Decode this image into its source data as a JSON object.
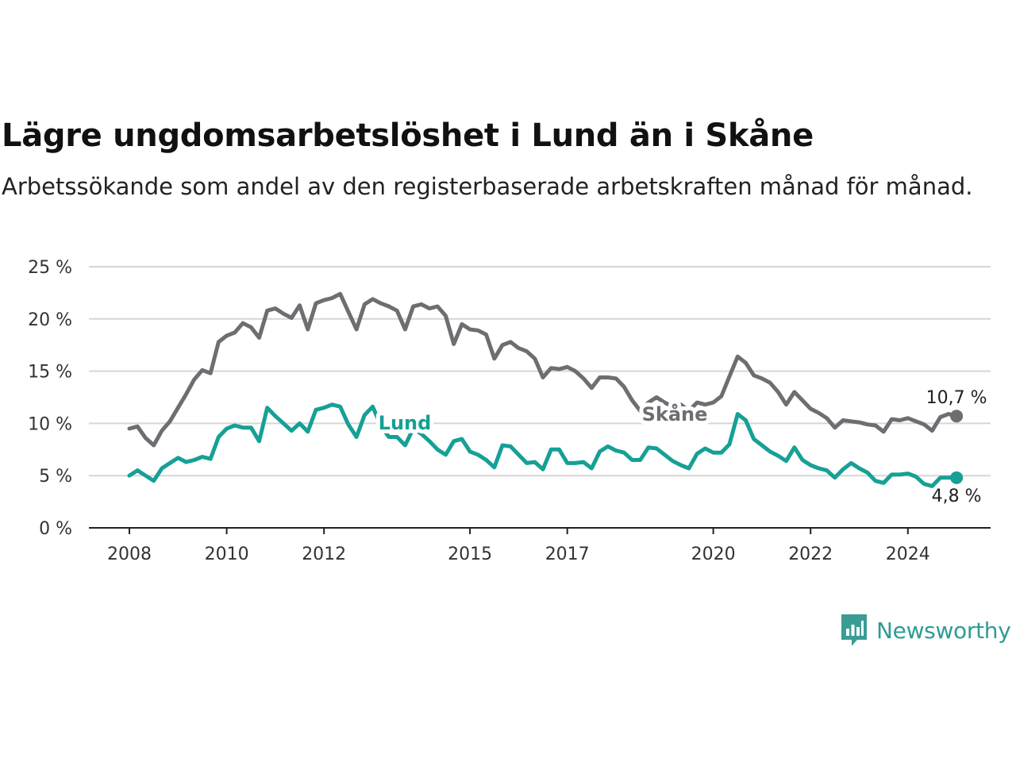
{
  "title": "Lägre ungdomsarbetslöshet i Lund än i Skåne",
  "subtitle": "Arbetssökande som andel av den registerbaserade arbetskraften månad för månad.",
  "brand": {
    "name": "Newsworthy",
    "icon": "newsworthy-bar-chart-icon",
    "color": "#3a9c94"
  },
  "chart_data": {
    "type": "line",
    "title": "Lägre ungdomsarbetslöshet i Lund än i Skåne",
    "subtitle": "Arbetssökande som andel av den registerbaserade arbetskraften månad för månad.",
    "xlabel": "",
    "ylabel": "",
    "x_range": [
      "2008-01",
      "2025-01"
    ],
    "ylim": [
      0,
      25
    ],
    "y_ticks": [
      "0 %",
      "5 %",
      "10 %",
      "15 %",
      "20 %",
      "25 %"
    ],
    "x_ticks": [
      "2008",
      "2010",
      "2012",
      "2015",
      "2017",
      "2020",
      "2022",
      "2024"
    ],
    "grid": true,
    "legend": "direct labels on lines",
    "series": [
      {
        "name": "Skåne",
        "color": "#6d6d72",
        "end_label": "10,7 %",
        "points": [
          [
            "2008-01",
            9.5
          ],
          [
            "2008-03",
            9.7
          ],
          [
            "2008-05",
            8.6
          ],
          [
            "2008-07",
            7.9
          ],
          [
            "2008-09",
            9.3
          ],
          [
            "2008-11",
            10.2
          ],
          [
            "2009-01",
            11.5
          ],
          [
            "2009-03",
            12.8
          ],
          [
            "2009-05",
            14.2
          ],
          [
            "2009-07",
            15.1
          ],
          [
            "2009-09",
            14.8
          ],
          [
            "2009-11",
            17.8
          ],
          [
            "2010-01",
            18.4
          ],
          [
            "2010-03",
            18.7
          ],
          [
            "2010-05",
            19.6
          ],
          [
            "2010-07",
            19.2
          ],
          [
            "2010-09",
            18.2
          ],
          [
            "2010-11",
            20.8
          ],
          [
            "2011-01",
            21.0
          ],
          [
            "2011-03",
            20.5
          ],
          [
            "2011-05",
            20.1
          ],
          [
            "2011-07",
            21.3
          ],
          [
            "2011-09",
            19.0
          ],
          [
            "2011-11",
            21.5
          ],
          [
            "2012-01",
            21.8
          ],
          [
            "2012-03",
            22.0
          ],
          [
            "2012-05",
            22.4
          ],
          [
            "2012-07",
            20.7
          ],
          [
            "2012-09",
            19.0
          ],
          [
            "2012-11",
            21.4
          ],
          [
            "2013-01",
            21.9
          ],
          [
            "2013-03",
            21.5
          ],
          [
            "2013-05",
            21.2
          ],
          [
            "2013-07",
            20.8
          ],
          [
            "2013-09",
            19.0
          ],
          [
            "2013-11",
            21.2
          ],
          [
            "2014-01",
            21.4
          ],
          [
            "2014-03",
            21.0
          ],
          [
            "2014-05",
            21.2
          ],
          [
            "2014-07",
            20.3
          ],
          [
            "2014-09",
            17.6
          ],
          [
            "2014-11",
            19.5
          ],
          [
            "2015-01",
            19.0
          ],
          [
            "2015-03",
            18.9
          ],
          [
            "2015-05",
            18.5
          ],
          [
            "2015-07",
            16.2
          ],
          [
            "2015-09",
            17.5
          ],
          [
            "2015-11",
            17.8
          ],
          [
            "2016-01",
            17.2
          ],
          [
            "2016-03",
            16.9
          ],
          [
            "2016-05",
            16.2
          ],
          [
            "2016-07",
            14.4
          ],
          [
            "2016-09",
            15.3
          ],
          [
            "2016-11",
            15.2
          ],
          [
            "2017-01",
            15.4
          ],
          [
            "2017-03",
            15.0
          ],
          [
            "2017-05",
            14.3
          ],
          [
            "2017-07",
            13.4
          ],
          [
            "2017-09",
            14.4
          ],
          [
            "2017-11",
            14.4
          ],
          [
            "2018-01",
            14.3
          ],
          [
            "2018-03",
            13.5
          ],
          [
            "2018-05",
            12.2
          ],
          [
            "2018-07",
            11.2
          ],
          [
            "2018-09",
            12.0
          ],
          [
            "2018-11",
            12.5
          ],
          [
            "2019-01",
            12.0
          ],
          [
            "2019-03",
            11.6
          ],
          [
            "2019-05",
            11.8
          ],
          [
            "2019-07",
            11.2
          ],
          [
            "2019-09",
            12.0
          ],
          [
            "2019-11",
            11.8
          ],
          [
            "2020-01",
            12.0
          ],
          [
            "2020-03",
            12.6
          ],
          [
            "2020-05",
            14.5
          ],
          [
            "2020-07",
            16.4
          ],
          [
            "2020-09",
            15.8
          ],
          [
            "2020-11",
            14.6
          ],
          [
            "2021-01",
            14.3
          ],
          [
            "2021-03",
            13.9
          ],
          [
            "2021-05",
            13.0
          ],
          [
            "2021-07",
            11.8
          ],
          [
            "2021-09",
            13.0
          ],
          [
            "2021-11",
            12.2
          ],
          [
            "2022-01",
            11.4
          ],
          [
            "2022-03",
            11.0
          ],
          [
            "2022-05",
            10.5
          ],
          [
            "2022-07",
            9.6
          ],
          [
            "2022-09",
            10.3
          ],
          [
            "2022-11",
            10.2
          ],
          [
            "2023-01",
            10.1
          ],
          [
            "2023-03",
            9.9
          ],
          [
            "2023-05",
            9.8
          ],
          [
            "2023-07",
            9.2
          ],
          [
            "2023-09",
            10.4
          ],
          [
            "2023-11",
            10.3
          ],
          [
            "2024-01",
            10.5
          ],
          [
            "2024-03",
            10.2
          ],
          [
            "2024-05",
            9.9
          ],
          [
            "2024-07",
            9.3
          ],
          [
            "2024-09",
            10.6
          ],
          [
            "2024-11",
            10.9
          ],
          [
            "2025-01",
            10.7
          ]
        ]
      },
      {
        "name": "Lund",
        "color": "#16a096",
        "end_label": "4,8 %",
        "points": [
          [
            "2008-01",
            5.0
          ],
          [
            "2008-03",
            5.5
          ],
          [
            "2008-05",
            5.0
          ],
          [
            "2008-07",
            4.5
          ],
          [
            "2008-09",
            5.7
          ],
          [
            "2008-11",
            6.2
          ],
          [
            "2009-01",
            6.7
          ],
          [
            "2009-03",
            6.3
          ],
          [
            "2009-05",
            6.5
          ],
          [
            "2009-07",
            6.8
          ],
          [
            "2009-09",
            6.6
          ],
          [
            "2009-11",
            8.7
          ],
          [
            "2010-01",
            9.5
          ],
          [
            "2010-03",
            9.8
          ],
          [
            "2010-05",
            9.6
          ],
          [
            "2010-07",
            9.6
          ],
          [
            "2010-09",
            8.3
          ],
          [
            "2010-11",
            11.5
          ],
          [
            "2011-01",
            10.7
          ],
          [
            "2011-03",
            10.0
          ],
          [
            "2011-05",
            9.3
          ],
          [
            "2011-07",
            10.0
          ],
          [
            "2011-09",
            9.2
          ],
          [
            "2011-11",
            11.3
          ],
          [
            "2012-01",
            11.5
          ],
          [
            "2012-03",
            11.8
          ],
          [
            "2012-05",
            11.6
          ],
          [
            "2012-07",
            9.9
          ],
          [
            "2012-09",
            8.7
          ],
          [
            "2012-11",
            10.8
          ],
          [
            "2013-01",
            11.6
          ],
          [
            "2013-03",
            9.8
          ],
          [
            "2013-05",
            8.7
          ],
          [
            "2013-07",
            8.7
          ],
          [
            "2013-09",
            7.9
          ],
          [
            "2013-11",
            9.5
          ],
          [
            "2014-01",
            9.0
          ],
          [
            "2014-03",
            8.3
          ],
          [
            "2014-05",
            7.5
          ],
          [
            "2014-07",
            7.0
          ],
          [
            "2014-09",
            8.3
          ],
          [
            "2014-11",
            8.5
          ],
          [
            "2015-01",
            7.3
          ],
          [
            "2015-03",
            7.0
          ],
          [
            "2015-05",
            6.5
          ],
          [
            "2015-07",
            5.8
          ],
          [
            "2015-09",
            7.9
          ],
          [
            "2015-11",
            7.8
          ],
          [
            "2016-01",
            7.0
          ],
          [
            "2016-03",
            6.2
          ],
          [
            "2016-05",
            6.3
          ],
          [
            "2016-07",
            5.6
          ],
          [
            "2016-09",
            7.5
          ],
          [
            "2016-11",
            7.5
          ],
          [
            "2017-01",
            6.2
          ],
          [
            "2017-03",
            6.2
          ],
          [
            "2017-05",
            6.3
          ],
          [
            "2017-07",
            5.7
          ],
          [
            "2017-09",
            7.3
          ],
          [
            "2017-11",
            7.8
          ],
          [
            "2018-01",
            7.4
          ],
          [
            "2018-03",
            7.2
          ],
          [
            "2018-05",
            6.5
          ],
          [
            "2018-07",
            6.5
          ],
          [
            "2018-09",
            7.7
          ],
          [
            "2018-11",
            7.6
          ],
          [
            "2019-01",
            7.0
          ],
          [
            "2019-03",
            6.4
          ],
          [
            "2019-05",
            6.0
          ],
          [
            "2019-07",
            5.7
          ],
          [
            "2019-09",
            7.1
          ],
          [
            "2019-11",
            7.6
          ],
          [
            "2020-01",
            7.2
          ],
          [
            "2020-03",
            7.2
          ],
          [
            "2020-05",
            8.0
          ],
          [
            "2020-07",
            10.9
          ],
          [
            "2020-09",
            10.3
          ],
          [
            "2020-11",
            8.5
          ],
          [
            "2021-01",
            7.9
          ],
          [
            "2021-03",
            7.3
          ],
          [
            "2021-05",
            6.9
          ],
          [
            "2021-07",
            6.4
          ],
          [
            "2021-09",
            7.7
          ],
          [
            "2021-11",
            6.5
          ],
          [
            "2022-01",
            6.0
          ],
          [
            "2022-03",
            5.7
          ],
          [
            "2022-05",
            5.5
          ],
          [
            "2022-07",
            4.8
          ],
          [
            "2022-09",
            5.6
          ],
          [
            "2022-11",
            6.2
          ],
          [
            "2023-01",
            5.7
          ],
          [
            "2023-03",
            5.3
          ],
          [
            "2023-05",
            4.5
          ],
          [
            "2023-07",
            4.3
          ],
          [
            "2023-09",
            5.1
          ],
          [
            "2023-11",
            5.1
          ],
          [
            "2024-01",
            5.2
          ],
          [
            "2024-03",
            4.9
          ],
          [
            "2024-05",
            4.2
          ],
          [
            "2024-07",
            4.0
          ],
          [
            "2024-09",
            4.8
          ],
          [
            "2024-11",
            4.8
          ],
          [
            "2025-01",
            4.8
          ]
        ]
      }
    ]
  }
}
